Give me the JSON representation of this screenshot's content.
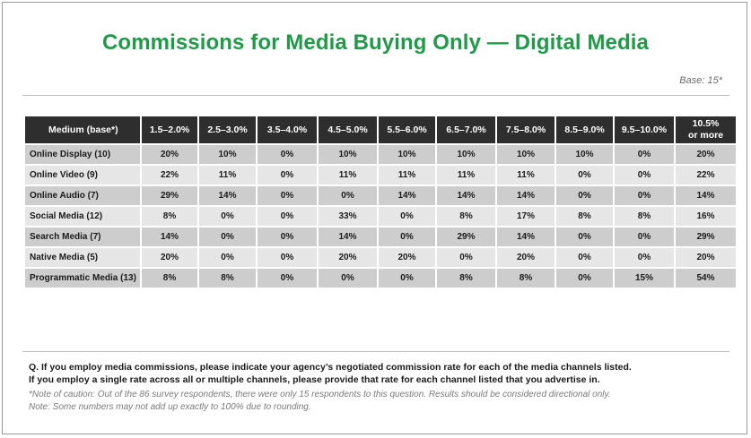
{
  "title": "Commissions for Media Buying Only — Digital Media",
  "base_note": "Base: 15*",
  "table": {
    "headers": [
      "Medium (base*)",
      "1.5–2.0%",
      "2.5–3.0%",
      "3.5–4.0%",
      "4.5–5.0%",
      "5.5–6.0%",
      "6.5–7.0%",
      "7.5–8.0%",
      "8.5–9.0%",
      "9.5–10.0%",
      "10.5%",
      "or more"
    ],
    "rows": [
      {
        "label": "Online Display (10)",
        "values": [
          "20%",
          "10%",
          "0%",
          "10%",
          "10%",
          "10%",
          "10%",
          "10%",
          "0%",
          "20%"
        ]
      },
      {
        "label": "Online Video (9)",
        "values": [
          "22%",
          "11%",
          "0%",
          "11%",
          "11%",
          "11%",
          "11%",
          "0%",
          "0%",
          "22%"
        ]
      },
      {
        "label": "Online Audio (7)",
        "values": [
          "29%",
          "14%",
          "0%",
          "0%",
          "14%",
          "14%",
          "14%",
          "0%",
          "0%",
          "14%"
        ]
      },
      {
        "label": "Social Media (12)",
        "values": [
          "8%",
          "0%",
          "0%",
          "33%",
          "0%",
          "8%",
          "17%",
          "8%",
          "8%",
          "16%"
        ]
      },
      {
        "label": "Search Media (7)",
        "values": [
          "14%",
          "0%",
          "0%",
          "14%",
          "0%",
          "29%",
          "14%",
          "0%",
          "0%",
          "29%"
        ]
      },
      {
        "label": "Native Media (5)",
        "values": [
          "20%",
          "0%",
          "0%",
          "20%",
          "20%",
          "0%",
          "20%",
          "0%",
          "0%",
          "20%"
        ]
      },
      {
        "label": "Programmatic Media (13)",
        "values": [
          "8%",
          "8%",
          "0%",
          "0%",
          "0%",
          "8%",
          "8%",
          "0%",
          "15%",
          "54%"
        ]
      }
    ]
  },
  "question_line1": "Q. If you employ media commissions, please indicate your agency’s negotiated commission rate for each of the media channels listed.",
  "question_line2": "If you employ a single rate across all or multiple channels, please provide that rate for each channel listed that you advertise in.",
  "note_caution": "*Note of caution: Out of the 86 survey respondents, there were only 15 respondents to this question. Results should be considered directional only.",
  "note_rounding": "Note: Some numbers may not add up exactly to 100% due to rounding.",
  "colors": {
    "title": "#1f9a48",
    "header_bg": "#2e2e2e",
    "row_dark": "#cdcdcd",
    "row_light": "#e6e6e6"
  }
}
